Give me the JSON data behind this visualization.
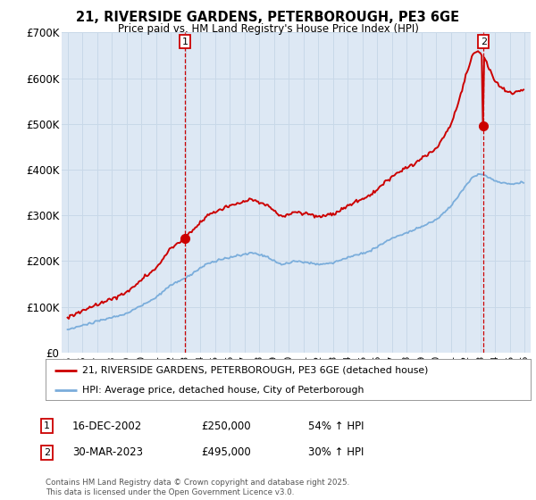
{
  "title": "21, RIVERSIDE GARDENS, PETERBOROUGH, PE3 6GE",
  "subtitle": "Price paid vs. HM Land Registry's House Price Index (HPI)",
  "red_label": "21, RIVERSIDE GARDENS, PETERBOROUGH, PE3 6GE (detached house)",
  "blue_label": "HPI: Average price, detached house, City of Peterborough",
  "annotation1_label": "1",
  "annotation1_date": "16-DEC-2002",
  "annotation1_price": "£250,000",
  "annotation1_hpi": "54% ↑ HPI",
  "annotation2_label": "2",
  "annotation2_date": "30-MAR-2023",
  "annotation2_price": "£495,000",
  "annotation2_hpi": "30% ↑ HPI",
  "footnote": "Contains HM Land Registry data © Crown copyright and database right 2025.\nThis data is licensed under the Open Government Licence v3.0.",
  "red_color": "#cc0000",
  "blue_color": "#7aaddb",
  "annotation_line_color": "#cc0000",
  "grid_color": "#c8d8e8",
  "background_color": "#ffffff",
  "chart_bg_color": "#dde8f4",
  "ylim": [
    0,
    700000
  ],
  "yticks": [
    0,
    100000,
    200000,
    300000,
    400000,
    500000,
    600000,
    700000
  ],
  "ytick_labels": [
    "£0",
    "£100K",
    "£200K",
    "£300K",
    "£400K",
    "£500K",
    "£600K",
    "£700K"
  ]
}
